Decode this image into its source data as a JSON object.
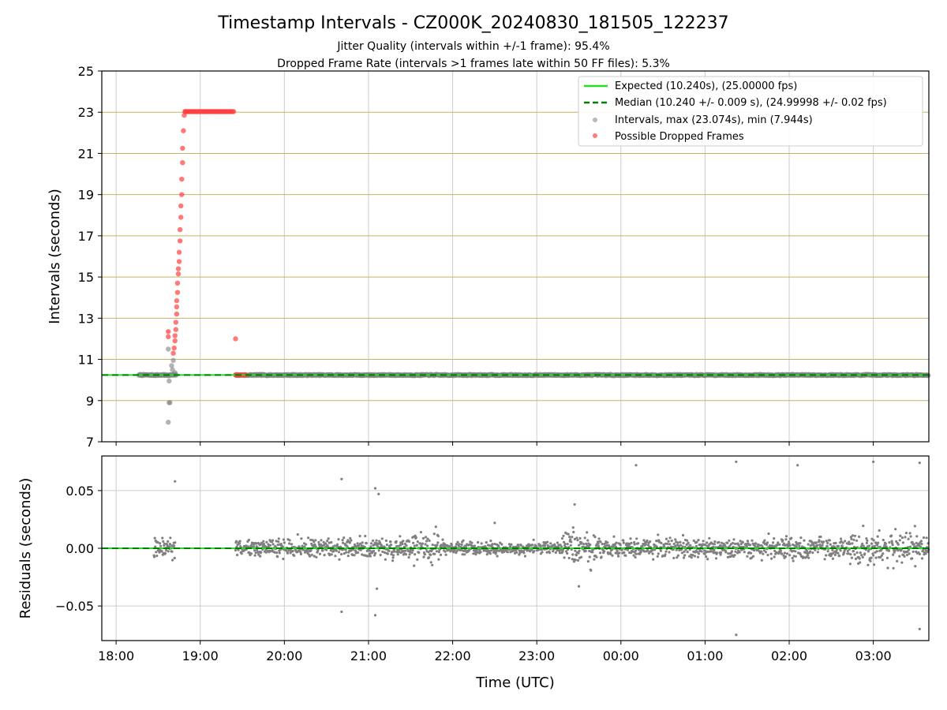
{
  "chart_data": {
    "type": "scatter",
    "title": "Timestamp Intervals - CZ000K_20240830_181505_122237",
    "subtitle_lines": [
      "Jitter Quality (intervals within +/-1 frame): 95.4%",
      "Dropped Frame Rate (intervals >1 frames late within 50 FF files): 5.3%"
    ],
    "xlabel": "Time (UTC)",
    "x_tick_labels": [
      "18:00",
      "19:00",
      "20:00",
      "21:00",
      "22:00",
      "23:00",
      "00:00",
      "01:00",
      "02:00",
      "03:00"
    ],
    "x_range_hours": [
      17.83,
      27.66
    ],
    "top_panel": {
      "ylabel": "Intervals (seconds)",
      "ylim": [
        7,
        25
      ],
      "y_ticks": [
        7,
        9,
        11,
        13,
        15,
        17,
        19,
        21,
        23,
        25
      ],
      "expected_interval": 10.24,
      "median_interval": 10.24,
      "legend_position": "upper right",
      "legend": [
        "Expected (10.240s), (25.00000 fps)",
        "Median (10.240 +/- 0.009 s), (24.99998 +/- 0.02 fps)",
        "Intervals, max (23.074s), min (7.944s)",
        "Possible Dropped Frames"
      ],
      "normal_points": [
        [
          18.62,
          11.5
        ],
        [
          18.63,
          9.95
        ],
        [
          18.63,
          8.9
        ],
        [
          18.64,
          8.9
        ],
        [
          18.62,
          7.95
        ],
        [
          18.66,
          10.7
        ],
        [
          18.67,
          10.5
        ],
        [
          18.68,
          10.95
        ],
        [
          18.7,
          10.35
        ]
      ],
      "normal_band": {
        "x_start": 18.27,
        "x_end": 27.66,
        "y": 10.24,
        "gap_start": 18.72,
        "gap_end": 19.42
      },
      "dropped_points": [
        [
          18.62,
          12.35
        ],
        [
          18.62,
          12.1
        ],
        [
          18.68,
          11.3
        ],
        [
          18.69,
          11.55
        ],
        [
          18.7,
          11.9
        ],
        [
          18.7,
          12.15
        ],
        [
          18.71,
          12.45
        ],
        [
          18.71,
          12.8
        ],
        [
          18.72,
          13.2
        ],
        [
          18.72,
          13.55
        ],
        [
          18.72,
          13.85
        ],
        [
          18.73,
          14.25
        ],
        [
          18.73,
          14.7
        ],
        [
          18.74,
          15.15
        ],
        [
          18.74,
          15.4
        ],
        [
          18.75,
          15.75
        ],
        [
          18.75,
          16.2
        ],
        [
          18.76,
          16.75
        ],
        [
          18.76,
          17.3
        ],
        [
          18.77,
          17.9
        ],
        [
          18.77,
          18.45
        ],
        [
          18.78,
          19.0
        ],
        [
          18.78,
          19.75
        ],
        [
          18.79,
          20.55
        ],
        [
          18.79,
          21.25
        ],
        [
          18.8,
          22.1
        ],
        [
          18.81,
          22.85
        ],
        [
          18.82,
          23.03
        ],
        [
          19.42,
          12.0
        ]
      ],
      "dropped_band_23": {
        "x_start": 18.82,
        "x_end": 19.4,
        "y": 23.03
      },
      "dropped_band_1024": {
        "x_start": 19.42,
        "x_end": 19.55,
        "y": 10.24
      }
    },
    "bottom_panel": {
      "ylabel": "Residuals (seconds)",
      "ylim": [
        -0.08,
        0.08
      ],
      "y_ticks": [
        0.05,
        0.0,
        -0.05
      ],
      "y_tick_labels": [
        "0.05",
        "0.00",
        "−0.05"
      ],
      "outliers": [
        [
          18.7,
          0.058
        ],
        [
          20.68,
          0.06
        ],
        [
          20.68,
          -0.055
        ],
        [
          21.08,
          0.052
        ],
        [
          21.08,
          -0.058
        ],
        [
          21.12,
          0.047
        ],
        [
          21.1,
          -0.035
        ],
        [
          24.18,
          0.072
        ],
        [
          25.37,
          0.075
        ],
        [
          25.37,
          -0.075
        ],
        [
          26.1,
          0.072
        ],
        [
          27.0,
          0.075
        ],
        [
          27.55,
          0.074
        ],
        [
          27.55,
          -0.07
        ],
        [
          23.45,
          0.038
        ],
        [
          23.5,
          -0.033
        ],
        [
          22.5,
          0.022
        ]
      ]
    },
    "colors": {
      "expected_line": "#22dd22",
      "median_line": "#008000",
      "intervals": "#808080",
      "dropped": "#ff4040",
      "top_grid_y": "#c8b364",
      "grid": "#cccccc"
    }
  }
}
